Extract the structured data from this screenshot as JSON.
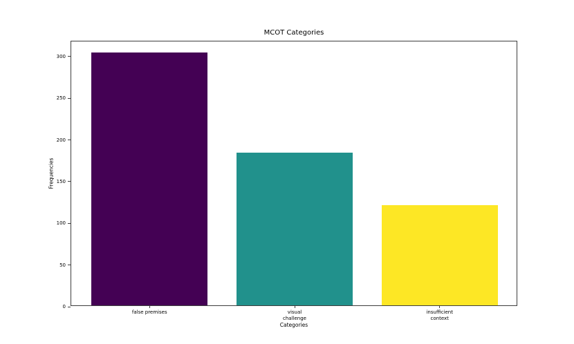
{
  "chart_data": {
    "type": "bar",
    "title": "MCOT Categories",
    "xlabel": "Categories",
    "ylabel": "Frequencies",
    "categories": [
      "false premises",
      "visual\nchallenge",
      "insufficient\ncontext"
    ],
    "values": [
      303,
      183,
      120
    ],
    "colors": [
      "#440154",
      "#21918c",
      "#fde725"
    ],
    "colormap": "viridis",
    "yticks": [
      0,
      50,
      100,
      150,
      200,
      250,
      300
    ],
    "ylim": [
      0,
      318.15
    ],
    "grid": false,
    "legend": "none",
    "spine_color": "#3c3c3c",
    "background": "#ffffff"
  }
}
